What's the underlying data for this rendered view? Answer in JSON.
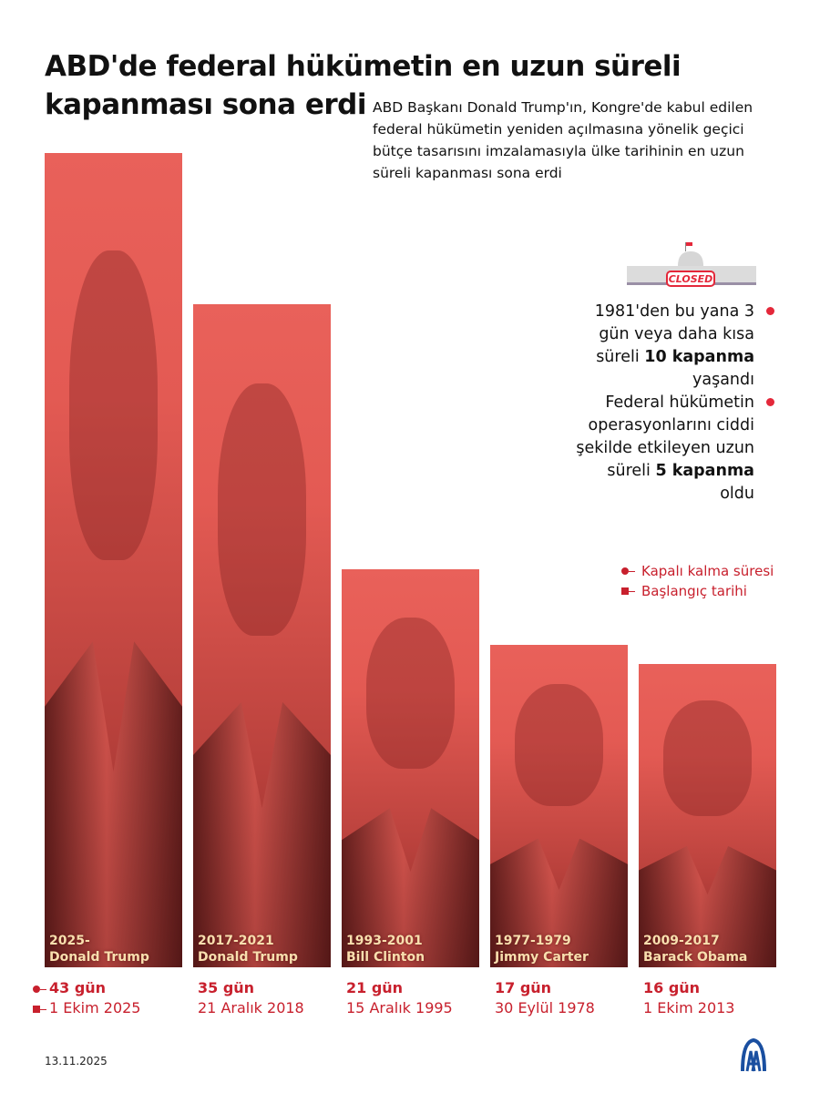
{
  "header": {
    "title_line1": "ABD'de federal hükümetin en uzun süreli",
    "title_line2": "kapanması sona erdi",
    "subtitle": "ABD Başkanı Donald Trump'ın, Kongre'de kabul edilen federal hükümetin yeniden açılmasına yönelik geçici bütçe tasarısını imzalamasıyla ülke tarihinin en uzun süreli kapanması sona erdi"
  },
  "illustration": {
    "label": "CLOSED",
    "icon": "capitol-closed-icon"
  },
  "facts": [
    {
      "pre": "1981'den bu yana 3 gün veya daha kısa süreli ",
      "bold": "10 kapanma",
      "post": " yaşandı"
    },
    {
      "pre": "Federal hükümetin operasyonlarını ciddi şekilde etkileyen uzun süreli ",
      "bold": "5 kapanma",
      "post": " oldu"
    }
  ],
  "legend": {
    "duration": "Kapalı kalma süresi",
    "start": "Başlangıç tarihi"
  },
  "colors": {
    "bar": "#e35a53",
    "accent": "#c8202d",
    "label": "#f8dfae",
    "logo": "#1a4fa0"
  },
  "chart_data": {
    "type": "bar",
    "categories": [
      "2025- Donald Trump",
      "2017-2021 Donald Trump",
      "1993-2001 Bill Clinton",
      "1977-1979 Jimmy Carter",
      "2009-2017 Barack Obama"
    ],
    "bars": [
      {
        "term": "2025-",
        "president": "Donald Trump",
        "value": 43,
        "duration_label": "43 gün",
        "start": "1 Ekim 2025"
      },
      {
        "term": "2017-2021",
        "president": "Donald Trump",
        "value": 35,
        "duration_label": "35 gün",
        "start": "21 Aralık 2018"
      },
      {
        "term": "1993-2001",
        "president": "Bill Clinton",
        "value": 21,
        "duration_label": "21 gün",
        "start": "15 Aralık 1995"
      },
      {
        "term": "1977-1979",
        "president": "Jimmy Carter",
        "value": 17,
        "duration_label": "17 gün",
        "start": "30 Eylül 1978"
      },
      {
        "term": "2009-2017",
        "president": "Barack Obama",
        "value": 16,
        "duration_label": "16 gün",
        "start": "1 Ekim 2013"
      }
    ],
    "unit": "gün"
  },
  "footer": {
    "date": "13.11.2025",
    "logo": "AA"
  }
}
